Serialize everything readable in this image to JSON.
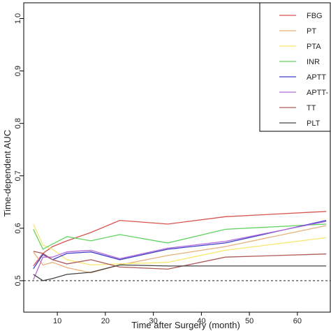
{
  "chart_data": {
    "type": "line",
    "title": "",
    "xlabel": "Time after Surgery (month)",
    "ylabel": "Time-dependent AUC",
    "xlim": [
      3,
      67
    ],
    "ylim": [
      0.44,
      1.03
    ],
    "xticks": [
      10,
      20,
      30,
      40,
      50,
      60
    ],
    "yticks": [
      0.5,
      0.6,
      0.7,
      0.8,
      0.9,
      1.0
    ],
    "grid": false,
    "legend_position": "top-right",
    "reference_line": {
      "y": 0.5,
      "style": "dashed"
    },
    "series": [
      {
        "name": "FBG",
        "color": "#d9534f",
        "x": [
          5,
          7,
          9,
          12,
          17,
          23,
          33,
          45,
          66
        ],
        "y": [
          0.528,
          0.552,
          0.565,
          0.576,
          0.592,
          0.615,
          0.608,
          0.622,
          0.632
        ]
      },
      {
        "name": "PT",
        "color": "#e8b07a",
        "x": [
          5,
          7,
          9,
          12,
          17,
          23,
          33,
          45,
          66
        ],
        "y": [
          0.555,
          0.53,
          0.535,
          0.525,
          0.515,
          0.53,
          0.548,
          0.565,
          0.605
        ]
      },
      {
        "name": "PTA",
        "color": "#f5e86a",
        "x": [
          5,
          7,
          9,
          12,
          17,
          23,
          33,
          45,
          66
        ],
        "y": [
          0.608,
          0.568,
          0.56,
          0.54,
          0.53,
          0.532,
          0.535,
          0.558,
          0.582
        ]
      },
      {
        "name": "INR",
        "color": "#5fd35f",
        "x": [
          5,
          7,
          9,
          12,
          17,
          23,
          33,
          45,
          66
        ],
        "y": [
          0.598,
          0.56,
          0.57,
          0.584,
          0.576,
          0.588,
          0.572,
          0.598,
          0.608
        ]
      },
      {
        "name": "APTT",
        "color": "#3b3fc7",
        "x": [
          5,
          7,
          9,
          12,
          17,
          23,
          33,
          45,
          66
        ],
        "y": [
          0.523,
          0.55,
          0.54,
          0.552,
          0.555,
          0.54,
          0.56,
          0.572,
          0.615
        ]
      },
      {
        "name": "APTT-",
        "color": "#b36ad9",
        "x": [
          5,
          7,
          9,
          12,
          17,
          23,
          33,
          45,
          66
        ],
        "y": [
          0.502,
          0.545,
          0.545,
          0.555,
          0.558,
          0.542,
          0.562,
          0.575,
          0.613
        ]
      },
      {
        "name": "TT",
        "color": "#b05a5a",
        "x": [
          5,
          7,
          9,
          12,
          17,
          23,
          33,
          45,
          66
        ],
        "y": [
          0.556,
          0.552,
          0.54,
          0.532,
          0.54,
          0.526,
          0.522,
          0.545,
          0.551
        ]
      },
      {
        "name": "PLT",
        "color": "#444444",
        "x": [
          5,
          7,
          9,
          12,
          17,
          23,
          33,
          45,
          66
        ],
        "y": [
          0.512,
          0.5,
          0.504,
          0.512,
          0.516,
          0.53,
          0.528,
          0.528,
          0.528
        ]
      }
    ]
  }
}
